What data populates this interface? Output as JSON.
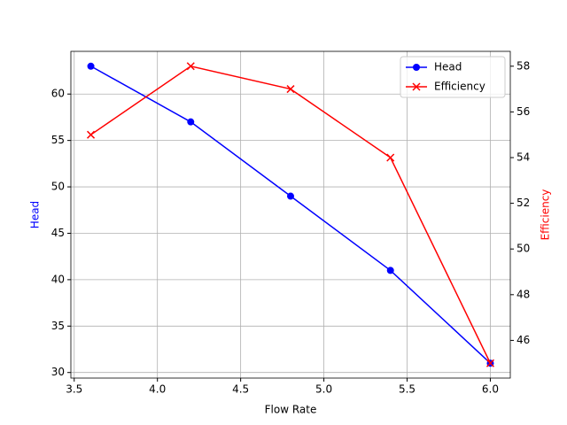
{
  "chart_data": {
    "type": "line",
    "x_label": "Flow Rate",
    "y_label": "Head",
    "y2_label": "Efficiency",
    "x": [
      3.6,
      4.2,
      4.8,
      5.4,
      6.0
    ],
    "series": [
      {
        "name": "Head",
        "color": "#0000ff",
        "marker": "o",
        "values": [
          63,
          57,
          49,
          41,
          31
        ]
      },
      {
        "name": "Efficiency",
        "color": "#ff0000",
        "marker": "x",
        "axis": "y2",
        "values": [
          55,
          58,
          57,
          54,
          45
        ]
      }
    ],
    "xlim": [
      3.48,
      6.12
    ],
    "xticks": [
      3.5,
      {
        "value": 4,
        "label": "4.0"
      },
      4.5,
      {
        "value": 5,
        "label": "5.0"
      },
      5.5,
      {
        "value": 6,
        "label": "6.0"
      }
    ],
    "ylim": [
      29.4,
      64.6
    ],
    "yticks": [
      30,
      35,
      40,
      45,
      50,
      55,
      60
    ],
    "y2lim": [
      44.35,
      58.65
    ],
    "y2ticks": [
      46,
      48,
      50,
      52,
      54,
      56,
      58
    ],
    "grid": true,
    "legend": "upper right"
  }
}
